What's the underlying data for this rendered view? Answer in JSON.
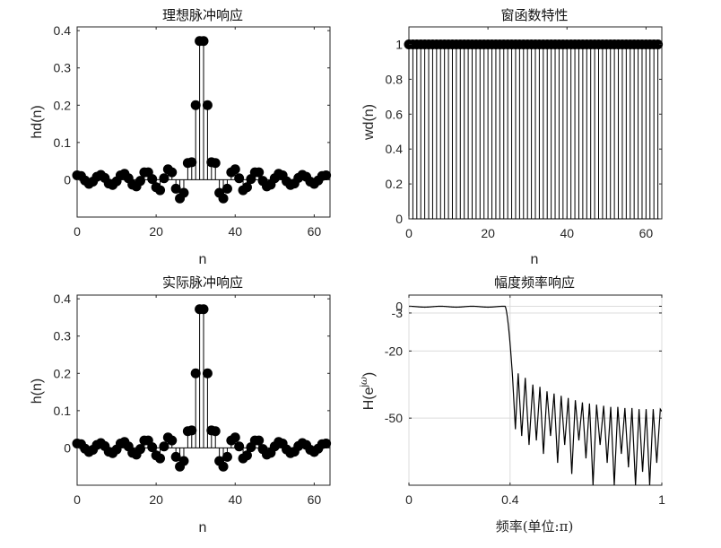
{
  "chart_data": [
    {
      "type": "stem",
      "title": "理想脉冲响应",
      "xlabel": "n",
      "ylabel": "hd(n)",
      "xlim": [
        0,
        64
      ],
      "ylim": [
        -0.1,
        0.41
      ],
      "xticks": [
        0,
        20,
        40,
        60
      ],
      "yticks": [
        0,
        0.1,
        0.2,
        0.3,
        0.4
      ],
      "tick_labels_x": [
        "0",
        "20",
        "40",
        "60"
      ],
      "tick_labels_y": [
        "0",
        "0.1",
        "0.2",
        "0.3",
        "0.4"
      ],
      "x": [
        0,
        1,
        2,
        3,
        4,
        5,
        6,
        7,
        8,
        9,
        10,
        11,
        12,
        13,
        14,
        15,
        16,
        17,
        18,
        19,
        20,
        21,
        22,
        23,
        24,
        25,
        26,
        27,
        28,
        29,
        30,
        31,
        32,
        33,
        34,
        35,
        36,
        37,
        38,
        39,
        40,
        41,
        42,
        43,
        44,
        45,
        46,
        47,
        48,
        49,
        50,
        51,
        52,
        53,
        54,
        55,
        56,
        57,
        58,
        59,
        60,
        61,
        62,
        63
      ],
      "values": [
        0.012,
        0.01,
        -0.002,
        -0.011,
        -0.005,
        0.008,
        0.013,
        0.005,
        -0.01,
        -0.014,
        -0.004,
        0.012,
        0.016,
        0.004,
        -0.013,
        -0.018,
        -0.003,
        0.02,
        0.02,
        0.002,
        -0.02,
        -0.028,
        0.004,
        0.028,
        0.02,
        -0.024,
        -0.05,
        -0.035,
        0.045,
        0.047,
        0.2,
        0.372,
        0.372,
        0.2,
        0.047,
        0.045,
        -0.035,
        -0.05,
        -0.024,
        0.02,
        0.028,
        0.004,
        -0.028,
        -0.02,
        0.002,
        0.02,
        0.02,
        -0.003,
        -0.018,
        -0.013,
        0.004,
        0.016,
        0.012,
        -0.004,
        -0.014,
        -0.01,
        0.005,
        0.013,
        0.008,
        -0.005,
        -0.011,
        -0.002,
        0.01,
        0.012
      ]
    },
    {
      "type": "stem",
      "title": "窗函数特性",
      "xlabel": "n",
      "ylabel": "wd(n)",
      "xlim": [
        0,
        64
      ],
      "ylim": [
        0,
        1.1
      ],
      "xticks": [
        0,
        20,
        40,
        60
      ],
      "yticks": [
        0,
        0.2,
        0.4,
        0.6,
        0.8,
        1
      ],
      "tick_labels_x": [
        "0",
        "20",
        "40",
        "60"
      ],
      "tick_labels_y": [
        "0",
        "0.2",
        "0.4",
        "0.6",
        "0.8",
        "1"
      ],
      "x_start": 0,
      "count": 64,
      "constant_value": 1
    },
    {
      "type": "stem",
      "title": "实际脉冲响应",
      "xlabel": "n",
      "ylabel": "h(n)",
      "xlim": [
        0,
        64
      ],
      "ylim": [
        -0.1,
        0.41
      ],
      "xticks": [
        0,
        20,
        40,
        60
      ],
      "yticks": [
        0,
        0.1,
        0.2,
        0.3,
        0.4
      ],
      "tick_labels_x": [
        "0",
        "20",
        "40",
        "60"
      ],
      "tick_labels_y": [
        "0",
        "0.1",
        "0.2",
        "0.3",
        "0.4"
      ],
      "x": [
        0,
        1,
        2,
        3,
        4,
        5,
        6,
        7,
        8,
        9,
        10,
        11,
        12,
        13,
        14,
        15,
        16,
        17,
        18,
        19,
        20,
        21,
        22,
        23,
        24,
        25,
        26,
        27,
        28,
        29,
        30,
        31,
        32,
        33,
        34,
        35,
        36,
        37,
        38,
        39,
        40,
        41,
        42,
        43,
        44,
        45,
        46,
        47,
        48,
        49,
        50,
        51,
        52,
        53,
        54,
        55,
        56,
        57,
        58,
        59,
        60,
        61,
        62,
        63
      ],
      "values": [
        0.012,
        0.01,
        -0.002,
        -0.011,
        -0.005,
        0.008,
        0.013,
        0.005,
        -0.01,
        -0.014,
        -0.004,
        0.012,
        0.016,
        0.004,
        -0.013,
        -0.018,
        -0.003,
        0.02,
        0.02,
        0.002,
        -0.02,
        -0.028,
        0.004,
        0.028,
        0.02,
        -0.024,
        -0.05,
        -0.035,
        0.045,
        0.047,
        0.2,
        0.372,
        0.372,
        0.2,
        0.047,
        0.045,
        -0.035,
        -0.05,
        -0.024,
        0.02,
        0.028,
        0.004,
        -0.028,
        -0.02,
        0.002,
        0.02,
        0.02,
        -0.003,
        -0.018,
        -0.013,
        0.004,
        0.016,
        0.012,
        -0.004,
        -0.014,
        -0.01,
        0.005,
        0.013,
        0.008,
        -0.005,
        -0.011,
        -0.002,
        0.01,
        0.012
      ]
    },
    {
      "type": "line",
      "title": "幅度频率响应",
      "xlabel": "频率(单位:π)",
      "ylabel": "H(e^jω)",
      "xlim": [
        0,
        1
      ],
      "ylim": [
        -80,
        5
      ],
      "xticks": [
        0,
        0.4,
        1
      ],
      "yticks": [
        0,
        -3,
        -20,
        -50
      ],
      "tick_labels_x": [
        "0",
        "0.4",
        "1"
      ],
      "tick_labels_y": [
        "0",
        "-3",
        "-20",
        "-50"
      ],
      "grid": true,
      "passband": {
        "edge": 0.38,
        "ripple_db": 0.4
      },
      "transition": {
        "start": 0.38,
        "end": 0.41
      },
      "stopband_lobes": [
        {
          "x": 0.432,
          "peak": -30
        },
        {
          "x": 0.46,
          "peak": -32
        },
        {
          "x": 0.49,
          "peak": -35
        },
        {
          "x": 0.518,
          "peak": -36
        },
        {
          "x": 0.546,
          "peak": -38
        },
        {
          "x": 0.574,
          "peak": -39
        },
        {
          "x": 0.602,
          "peak": -40
        },
        {
          "x": 0.63,
          "peak": -41
        },
        {
          "x": 0.658,
          "peak": -42
        },
        {
          "x": 0.686,
          "peak": -43
        },
        {
          "x": 0.714,
          "peak": -43.5
        },
        {
          "x": 0.742,
          "peak": -44
        },
        {
          "x": 0.77,
          "peak": -44.5
        },
        {
          "x": 0.798,
          "peak": -45
        },
        {
          "x": 0.826,
          "peak": -45
        },
        {
          "x": 0.854,
          "peak": -45.5
        },
        {
          "x": 0.882,
          "peak": -45.5
        },
        {
          "x": 0.91,
          "peak": -46
        },
        {
          "x": 0.938,
          "peak": -46
        },
        {
          "x": 0.966,
          "peak": -46
        },
        {
          "x": 0.994,
          "peak": -46
        }
      ],
      "stopband_nulls": [
        -55,
        -58,
        -62,
        -60,
        -66,
        -58,
        -70,
        -62,
        -75,
        -60,
        -68,
        -80,
        -62,
        -70,
        -80,
        -66,
        -72,
        -80,
        -74,
        -80
      ]
    }
  ]
}
